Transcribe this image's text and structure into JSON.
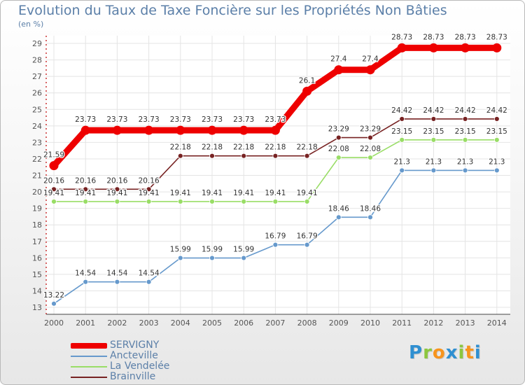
{
  "chart_data": {
    "type": "line",
    "title": "Evolution du Taux de Taxe Foncière sur les Propriétés Non Bâties",
    "ylabel": "(en %)",
    "xlabel": "",
    "ylim": [
      13,
      29
    ],
    "yticks": [
      13,
      14,
      15,
      16,
      17,
      18,
      19,
      20,
      21,
      22,
      23,
      24,
      25,
      26,
      27,
      28,
      29
    ],
    "categories": [
      "2000",
      "2001",
      "2002",
      "2003",
      "2004",
      "2005",
      "2006",
      "2007",
      "2008",
      "2009",
      "2010",
      "2011",
      "2012",
      "2013",
      "2014"
    ],
    "series": [
      {
        "name": "SERVIGNY",
        "color": "#ee0000",
        "values": [
          21.59,
          23.73,
          23.73,
          23.73,
          23.73,
          23.73,
          23.73,
          23.73,
          26.1,
          27.4,
          27.4,
          28.73,
          28.73,
          28.73,
          28.73
        ],
        "labels": [
          "21.59",
          "23.73",
          "23.73",
          "23.73",
          "23.73",
          "23.73",
          "23.73",
          "23.73",
          "26.1",
          "27.4",
          "27.4",
          "28.73",
          "28.73",
          "28.73",
          "28.73"
        ]
      },
      {
        "name": "Ancteville",
        "color": "#6699cc",
        "values": [
          13.22,
          14.54,
          14.54,
          14.54,
          15.99,
          15.99,
          15.99,
          16.79,
          16.79,
          18.46,
          18.46,
          21.3,
          21.3,
          21.3,
          21.3
        ],
        "labels": [
          "13.22",
          "14.54",
          "14.54",
          "14.54",
          "15.99",
          "15.99",
          "15.99",
          "16.79",
          "16.79",
          "18.46",
          "18.46",
          "21.3",
          "21.3",
          "21.3",
          "21.3"
        ]
      },
      {
        "name": "La Vendelée",
        "color": "#99dd66",
        "values": [
          19.41,
          19.41,
          19.41,
          19.41,
          19.41,
          19.41,
          19.41,
          19.41,
          19.41,
          22.08,
          22.08,
          23.15,
          23.15,
          23.15,
          23.15
        ],
        "labels": [
          "19.41",
          "19.41",
          "19.41",
          "19.41",
          "19.41",
          "19.41",
          "19.41",
          "19.41",
          "19.41",
          "22.08",
          "22.08",
          "23.15",
          "23.15",
          "23.15",
          "23.15"
        ]
      },
      {
        "name": "Brainville",
        "color": "#772222",
        "values": [
          20.16,
          20.16,
          20.16,
          20.16,
          22.18,
          22.18,
          22.18,
          22.18,
          22.18,
          23.29,
          23.29,
          24.42,
          24.42,
          24.42,
          24.42
        ],
        "labels": [
          "20.16",
          "20.16",
          "20.16",
          "20.16",
          "22.18",
          "22.18",
          "22.18",
          "22.18",
          "22.18",
          "23.29",
          "23.29",
          "24.42",
          "24.42",
          "24.42",
          "24.42"
        ]
      }
    ],
    "legend_position": "bottom-left",
    "grid": true
  },
  "logo": {
    "letters": [
      "P",
      "r",
      "o",
      "x",
      "i",
      "t",
      "i"
    ],
    "colors": [
      "#2f8fd1",
      "#8cc63f",
      "#f7941d",
      "#2f8fd1",
      "#8cc63f",
      "#f7941d",
      "#2f8fd1"
    ]
  }
}
